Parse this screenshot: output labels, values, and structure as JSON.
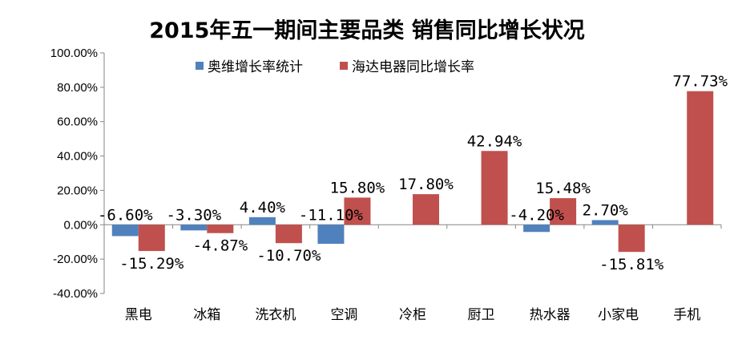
{
  "chart_data": {
    "type": "bar",
    "title": "2015年五一期间主要品类 销售同比增长状况",
    "categories": [
      "黑电",
      "冰箱",
      "洗衣机",
      "空调",
      "冷柜",
      "厨卫",
      "热水器",
      "小家电",
      "手机"
    ],
    "series": [
      {
        "name": "奥维增长率统计",
        "color": "#4f81bd",
        "values": [
          -6.6,
          -3.3,
          4.4,
          -11.1,
          null,
          null,
          -4.2,
          2.7,
          null
        ],
        "labels": [
          "-6.60%",
          "-3.30%",
          "4.40%",
          "-11.10%",
          "",
          "",
          "-4.20%",
          "2.70%",
          ""
        ]
      },
      {
        "name": "海达电器同比增长率",
        "color": "#c0504d",
        "values": [
          -15.29,
          -4.87,
          -10.7,
          15.8,
          17.8,
          42.94,
          15.48,
          -15.81,
          77.73
        ],
        "labels": [
          "-15.29%",
          "-4.87%",
          "-10.70%",
          "15.80%",
          "17.80%",
          "42.94%",
          "15.48%",
          "-15.81%",
          "77.73%"
        ]
      }
    ],
    "yticks": [
      "100.00%",
      "80.00%",
      "60.00%",
      "40.00%",
      "20.00%",
      "0.00%",
      "-20.00%",
      "-40.00%"
    ],
    "ylim": [
      -40,
      100
    ],
    "xlabel": "",
    "ylabel": "",
    "legend_position": "top",
    "grid": false
  }
}
